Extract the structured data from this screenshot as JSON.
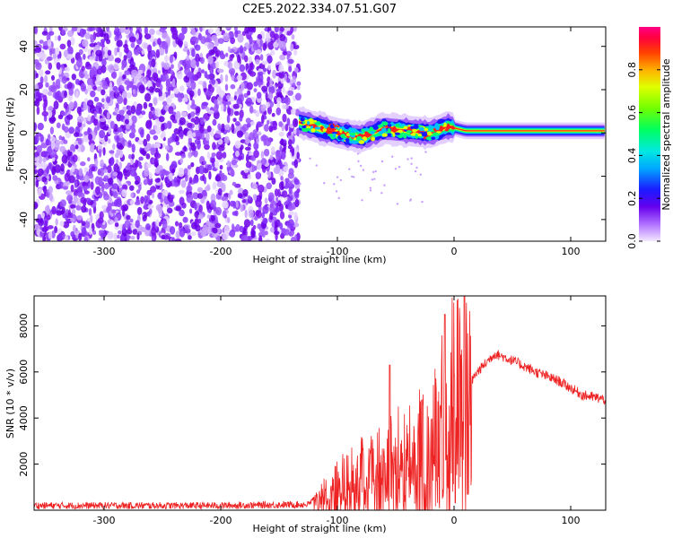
{
  "title": "C2E5.2022.334.07.51.G07",
  "chart_data": [
    {
      "type": "heatmap",
      "name": "spectrogram",
      "xlabel": "Height of straight line (km)",
      "ylabel": "Frequency (Hz)",
      "xlim": [
        -360,
        130
      ],
      "ylim": [
        -50,
        49
      ],
      "xticks": [
        -300,
        -200,
        -100,
        0,
        100
      ],
      "yticks": [
        -40,
        -20,
        0,
        20,
        40
      ],
      "noise_region_km": [
        -360,
        -133
      ],
      "ridge_onset_km": -133,
      "ridge_frequency_hz": [
        {
          "x": -133,
          "y": 5
        },
        {
          "x": -120,
          "y": 3
        },
        {
          "x": -100,
          "y": 0
        },
        {
          "x": -80,
          "y": -2
        },
        {
          "x": -60,
          "y": 2
        },
        {
          "x": -40,
          "y": 1
        },
        {
          "x": -20,
          "y": 0
        },
        {
          "x": -5,
          "y": 3
        },
        {
          "x": 10,
          "y": 1
        },
        {
          "x": 40,
          "y": 1
        },
        {
          "x": 90,
          "y": 1
        },
        {
          "x": 130,
          "y": 1
        }
      ],
      "colorbar": {
        "label": "Normalized spectral amplitude",
        "range": [
          0,
          1
        ],
        "ticks": [
          "0.0",
          "0.2",
          "0.4",
          "0.6",
          "0.8"
        ]
      }
    },
    {
      "type": "line",
      "name": "snr",
      "xlabel": "Height of straight line (km)",
      "ylabel": "SNR (10 * v/v)",
      "xlim": [
        -360,
        130
      ],
      "ylim": [
        0,
        9300
      ],
      "xticks": [
        -300,
        -200,
        -100,
        0,
        100
      ],
      "yticks": [
        2000,
        4000,
        6000,
        8000
      ],
      "color": "#ee2222",
      "envelope": [
        {
          "x": -360,
          "y": 200
        },
        {
          "x": -200,
          "y": 200
        },
        {
          "x": -125,
          "y": 250
        },
        {
          "x": -115,
          "y": 700
        },
        {
          "x": -100,
          "y": 1300
        },
        {
          "x": -80,
          "y": 1800
        },
        {
          "x": -60,
          "y": 2300
        },
        {
          "x": -40,
          "y": 2800
        },
        {
          "x": -20,
          "y": 3500
        },
        {
          "x": -10,
          "y": 4500
        },
        {
          "x": 0,
          "y": 5500
        },
        {
          "x": 10,
          "y": 5200
        },
        {
          "x": 20,
          "y": 6000
        },
        {
          "x": 35,
          "y": 6800
        },
        {
          "x": 50,
          "y": 6500
        },
        {
          "x": 70,
          "y": 6000
        },
        {
          "x": 90,
          "y": 5600
        },
        {
          "x": 110,
          "y": 5000
        },
        {
          "x": 130,
          "y": 4800
        }
      ],
      "peaks": [
        {
          "x": -55,
          "y": 6300
        },
        {
          "x": -8,
          "y": 8500
        },
        {
          "x": 9,
          "y": 9300
        }
      ]
    }
  ]
}
